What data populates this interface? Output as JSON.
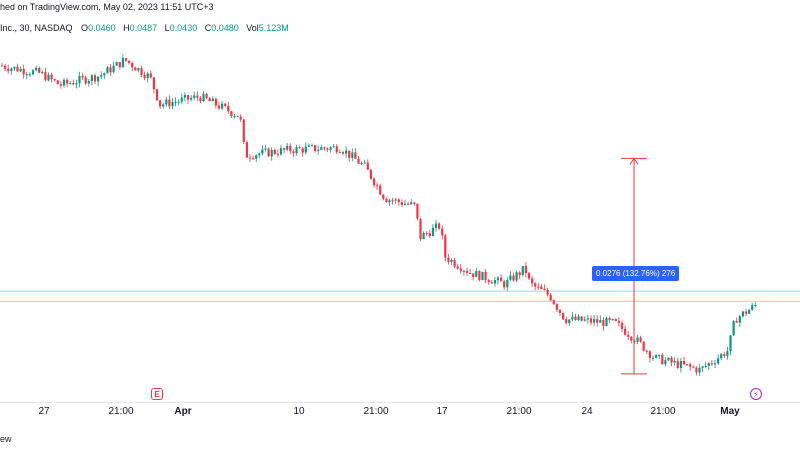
{
  "header": {
    "published_text": "hed on TradingView.com, May 02, 2023 11:51 UTC+3",
    "symbol_text": "Inc., 30, NASDAQ",
    "ohlc": [
      {
        "label": "O",
        "value": "0.0460"
      },
      {
        "label": "H",
        "value": "0.0487"
      },
      {
        "label": "L",
        "value": "0.0430"
      },
      {
        "label": "C",
        "value": "0.0480"
      },
      {
        "label": "Vol",
        "value": "5.123M"
      }
    ]
  },
  "measure_label": "0.0276 (132.76%) 276",
  "markers": {
    "earnings": "E",
    "dividend": "⚡"
  },
  "footer_text": "ew",
  "colors": {
    "up": "#089981",
    "down": "#f23645",
    "measure": "#f23645",
    "guide_green": "#9fd9cf",
    "guide_orange": "#f7b98b"
  },
  "chart_data": {
    "type": "candlestick",
    "timeframe": "30",
    "x_ticks": [
      "27",
      "21:00",
      "Apr",
      "10",
      "21:00",
      "17",
      "21:00",
      "24",
      "21:00",
      "May"
    ],
    "bold_ticks": [
      "Apr",
      "May"
    ],
    "price_path": [
      [
        0,
        0.0395
      ],
      [
        40,
        0.0385
      ],
      [
        60,
        0.037
      ],
      [
        100,
        0.0382
      ],
      [
        125,
        0.0402
      ],
      [
        150,
        0.038
      ],
      [
        160,
        0.0345
      ],
      [
        200,
        0.0355
      ],
      [
        240,
        0.033
      ],
      [
        245,
        0.028
      ],
      [
        290,
        0.0287
      ],
      [
        340,
        0.029
      ],
      [
        365,
        0.0265
      ],
      [
        385,
        0.0225
      ],
      [
        415,
        0.0215
      ],
      [
        420,
        0.0175
      ],
      [
        440,
        0.019
      ],
      [
        445,
        0.015
      ],
      [
        470,
        0.013
      ],
      [
        505,
        0.0115
      ],
      [
        525,
        0.0135
      ],
      [
        530,
        0.0115
      ],
      [
        550,
        0.01
      ],
      [
        565,
        0.007
      ],
      [
        615,
        0.0065
      ],
      [
        635,
        0.0045
      ],
      [
        655,
        0.002
      ],
      [
        700,
        0.0005
      ],
      [
        728,
        0.003
      ],
      [
        735,
        0.007
      ],
      [
        758,
        0.009
      ]
    ],
    "measure": {
      "from": 0.0,
      "to": 0.0276,
      "change": "0.0276 (132.76%)",
      "bars": 276
    },
    "guide_lines": [
      0.0106,
      0.0093
    ]
  }
}
